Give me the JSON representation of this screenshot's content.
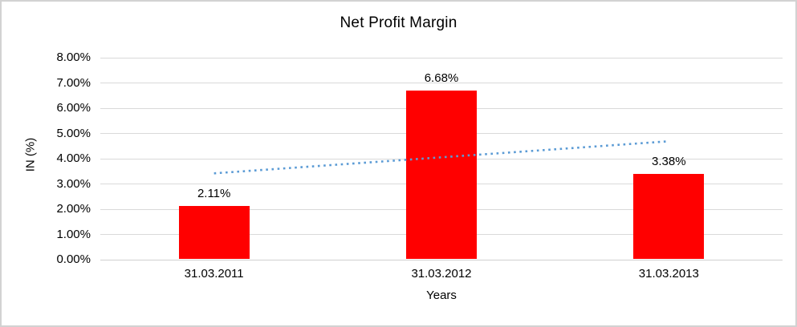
{
  "window": {
    "background": "#FFFFFF",
    "border_color": "#D2D2D2"
  },
  "chart_data": {
    "type": "bar",
    "title": "Net Profit Margin",
    "xlabel": "Years",
    "ylabel": "IN (%)",
    "categories": [
      "31.03.2011",
      "31.03.2012",
      "31.03.2013"
    ],
    "values": [
      2.11,
      6.68,
      3.38
    ],
    "data_labels": [
      "2.11%",
      "6.68%",
      "3.38%"
    ],
    "ylim": [
      0,
      8
    ],
    "ytick_labels": [
      "0.00%",
      "1.00%",
      "2.00%",
      "3.00%",
      "4.00%",
      "5.00%",
      "6.00%",
      "7.00%",
      "8.00%"
    ],
    "grid": true,
    "legend": "none",
    "bar_color": "#FF0000",
    "gridline_color": "#D9D9D9",
    "text_color": "#000000",
    "trendline": {
      "type": "linear",
      "style": "dotted",
      "color": "#5B9BD5",
      "start_value": 3.42,
      "end_value": 4.69
    }
  }
}
